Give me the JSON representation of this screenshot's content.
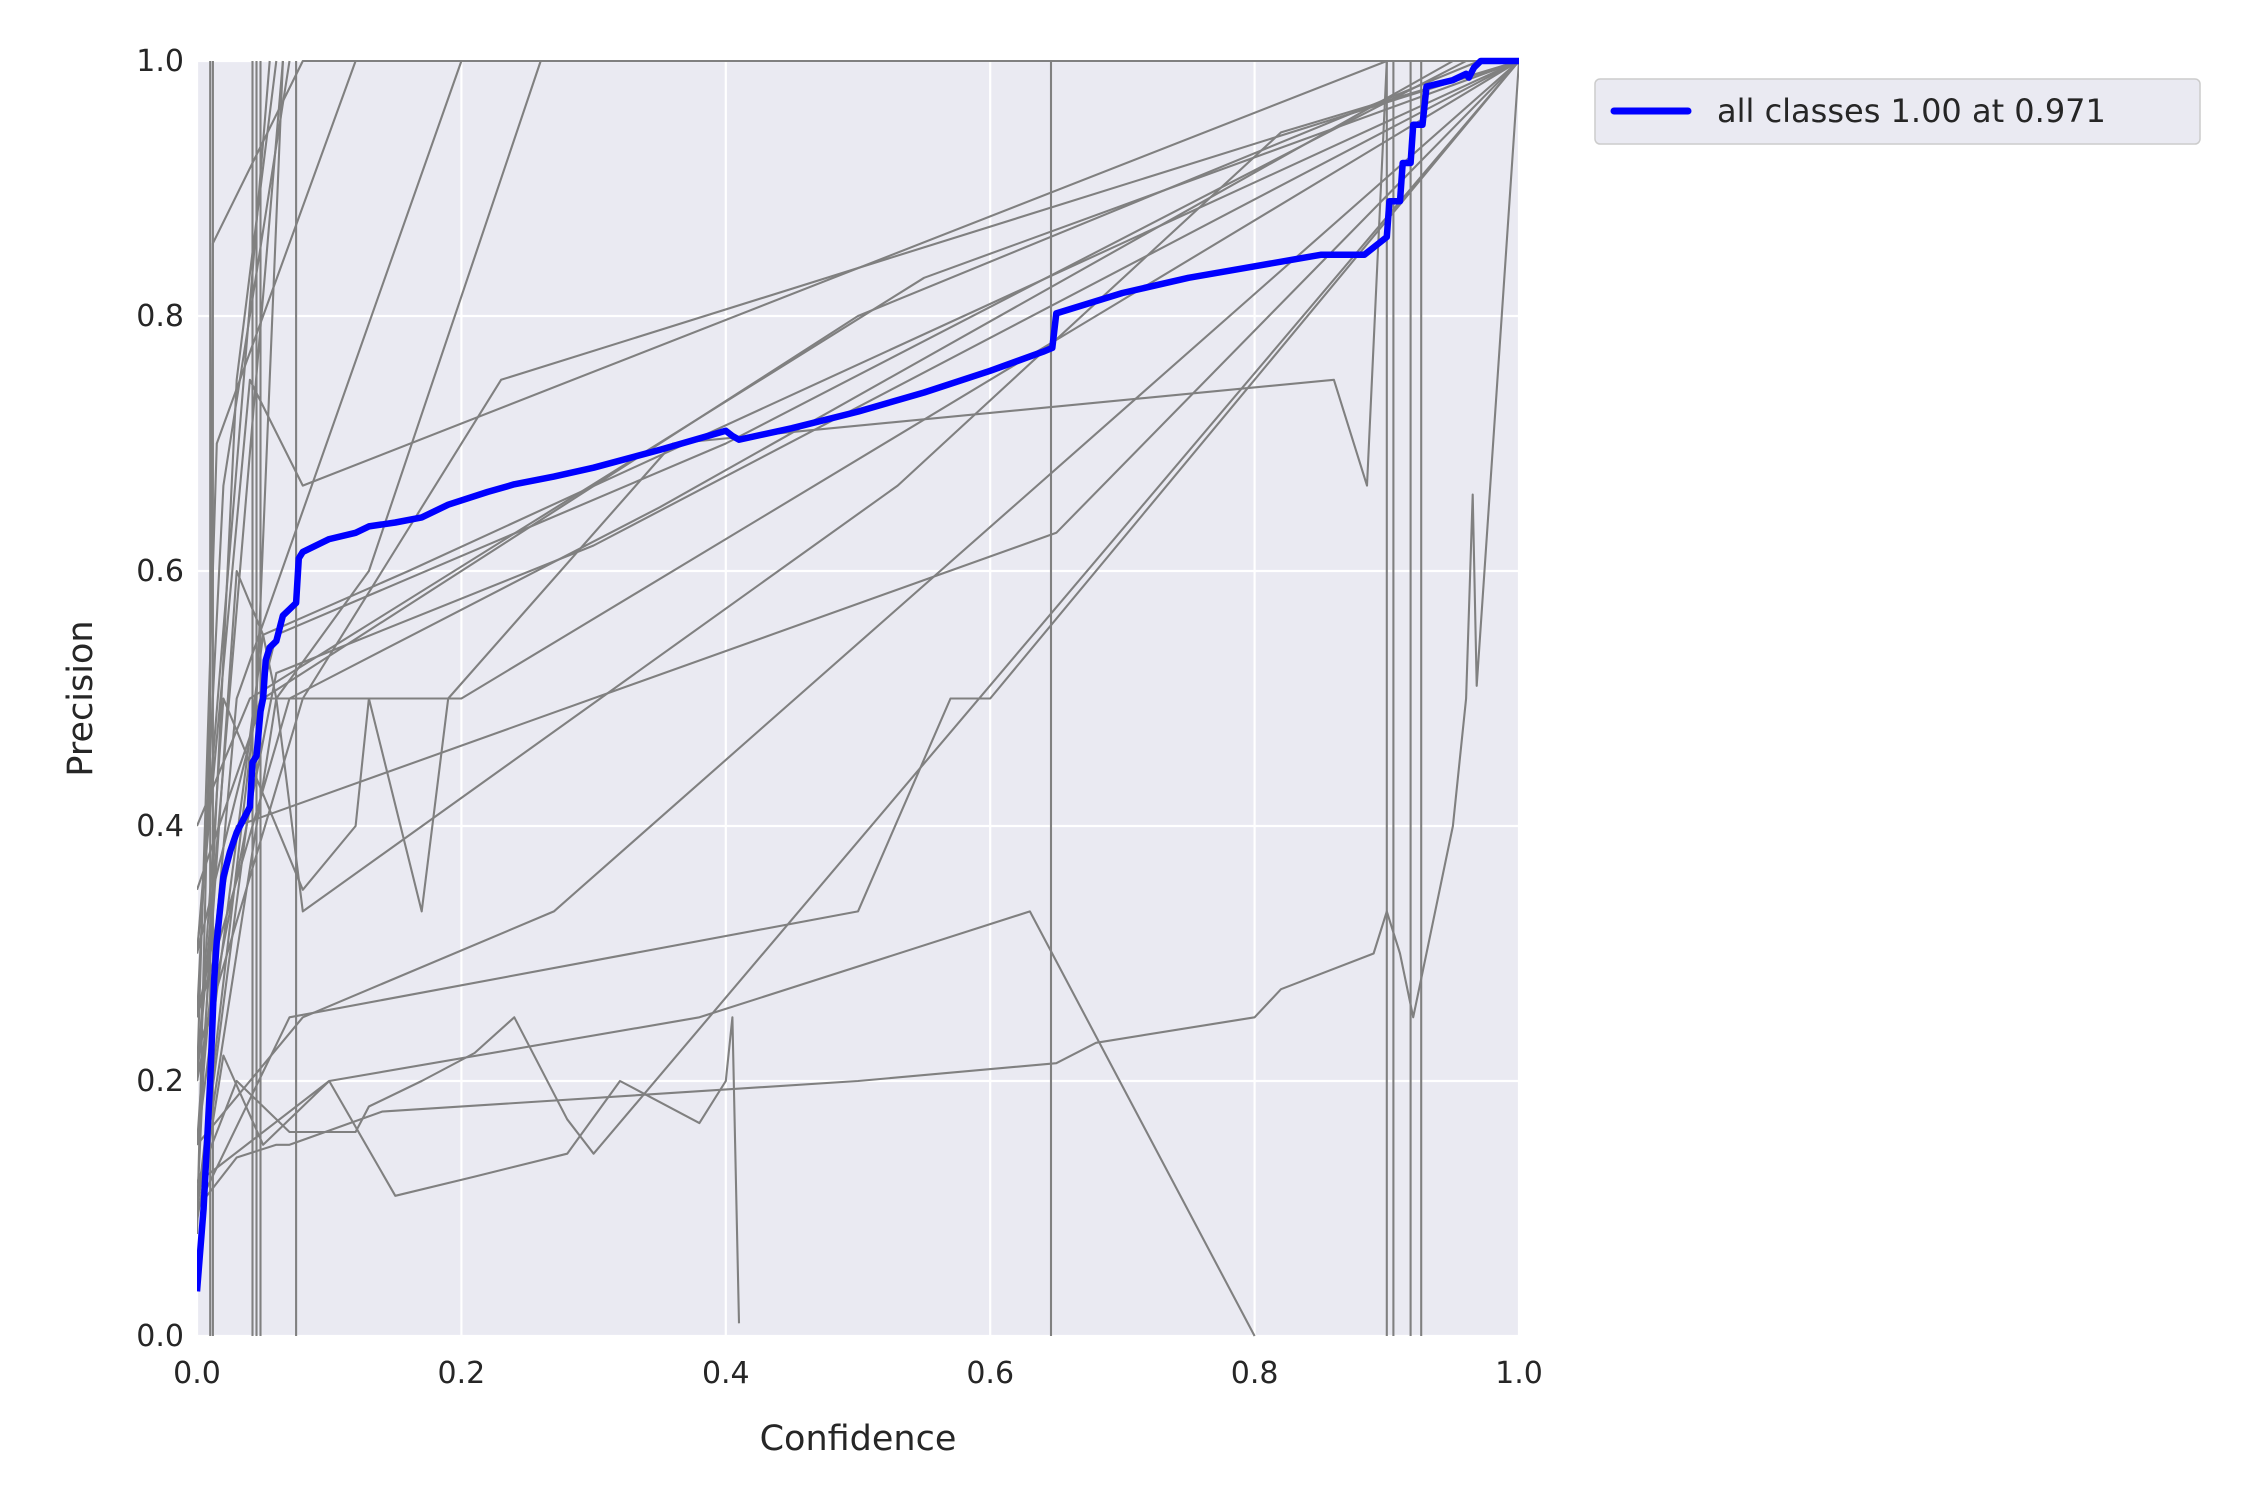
{
  "chart_data": {
    "type": "line",
    "title": "",
    "xlabel": "Confidence",
    "ylabel": "Precision",
    "xlim": [
      0,
      1
    ],
    "ylim": [
      0,
      1
    ],
    "x_ticks": [
      "0.0",
      "0.2",
      "0.4",
      "0.6",
      "0.8",
      "1.0"
    ],
    "y_ticks": [
      "0.0",
      "0.2",
      "0.4",
      "0.6",
      "0.8",
      "1.0"
    ],
    "grid": true,
    "legend_position": "outside-top-right",
    "colors": {
      "plot_bg": "#eaeaf2",
      "grid": "#ffffff",
      "class_lines": "#808080",
      "highlight": "#0000ff"
    },
    "series": [
      {
        "name": "all classes 1.00 at 0.971",
        "color": "#0000ff",
        "highlight": true,
        "x": [
          0.0,
          0.005,
          0.01,
          0.013,
          0.015,
          0.02,
          0.025,
          0.03,
          0.035,
          0.04,
          0.042,
          0.045,
          0.048,
          0.05,
          0.052,
          0.055,
          0.06,
          0.065,
          0.07,
          0.075,
          0.077,
          0.08,
          0.1,
          0.12,
          0.13,
          0.15,
          0.17,
          0.19,
          0.22,
          0.24,
          0.27,
          0.3,
          0.35,
          0.4,
          0.405,
          0.41,
          0.45,
          0.5,
          0.55,
          0.6,
          0.64,
          0.647,
          0.65,
          0.7,
          0.75,
          0.8,
          0.85,
          0.883,
          0.9,
          0.902,
          0.91,
          0.912,
          0.918,
          0.92,
          0.927,
          0.93,
          0.95,
          0.96,
          0.962,
          0.966,
          0.971,
          1.0
        ],
        "y": [
          0.035,
          0.1,
          0.2,
          0.28,
          0.31,
          0.36,
          0.38,
          0.395,
          0.405,
          0.415,
          0.45,
          0.455,
          0.49,
          0.5,
          0.53,
          0.54,
          0.545,
          0.565,
          0.57,
          0.575,
          0.61,
          0.615,
          0.625,
          0.63,
          0.635,
          0.638,
          0.642,
          0.652,
          0.662,
          0.668,
          0.674,
          0.681,
          0.695,
          0.71,
          0.706,
          0.703,
          0.712,
          0.725,
          0.74,
          0.757,
          0.772,
          0.775,
          0.802,
          0.818,
          0.83,
          0.839,
          0.848,
          0.848,
          0.862,
          0.89,
          0.89,
          0.92,
          0.92,
          0.95,
          0.95,
          0.98,
          0.985,
          0.99,
          0.987,
          0.995,
          1.0,
          1.0
        ]
      },
      {
        "x": [
          0.0,
          0.01,
          0.012,
          0.08,
          1.0
        ],
        "y": [
          0.08,
          0.5,
          0.857,
          1.0,
          1.0
        ]
      },
      {
        "x": [
          0.0,
          0.03,
          0.07,
          0.12,
          0.13,
          0.17,
          0.21,
          0.24,
          0.28,
          0.3,
          1.0
        ],
        "y": [
          0.12,
          0.2,
          0.16,
          0.16,
          0.18,
          0.2,
          0.222,
          0.25,
          0.17,
          0.143,
          1.0
        ]
      },
      {
        "x": [
          0.0,
          0.02,
          0.05,
          0.1,
          0.15,
          0.21,
          0.28,
          0.32,
          0.38,
          0.4,
          0.405,
          0.41
        ],
        "y": [
          0.09,
          0.22,
          0.15,
          0.2,
          0.11,
          0.125,
          0.143,
          0.2,
          0.167,
          0.2,
          0.25,
          0.01
        ]
      },
      {
        "x": [
          0.0,
          0.03,
          0.06,
          0.07,
          0.14,
          0.5,
          0.65,
          0.68,
          0.8,
          0.82,
          0.89,
          0.9,
          0.91,
          0.92,
          0.95,
          0.96,
          0.965,
          0.968,
          1.0
        ],
        "y": [
          0.1,
          0.14,
          0.15,
          0.15,
          0.176,
          0.2,
          0.214,
          0.23,
          0.25,
          0.272,
          0.3,
          0.333,
          0.3,
          0.25,
          0.4,
          0.5,
          0.66,
          0.51,
          1.0
        ]
      },
      {
        "x": [
          0.0,
          0.08,
          0.27,
          1.0
        ],
        "y": [
          0.15,
          0.25,
          0.333,
          1.0
        ]
      },
      {
        "x": [
          0.0,
          0.07,
          0.5,
          0.57,
          0.6,
          1.0
        ],
        "y": [
          0.1,
          0.25,
          0.333,
          0.5,
          0.5,
          1.0
        ]
      },
      {
        "x": [
          0.0,
          0.1,
          0.38,
          0.63,
          0.8
        ],
        "y": [
          0.12,
          0.2,
          0.25,
          0.333,
          0.0
        ]
      },
      {
        "x": [
          0.0,
          0.02,
          0.08,
          0.12,
          0.13,
          0.17,
          0.19,
          0.36,
          0.86,
          0.885,
          0.9,
          1.0
        ],
        "y": [
          0.2,
          0.5,
          0.35,
          0.4,
          0.5,
          0.333,
          0.5,
          0.7,
          0.75,
          0.667,
          1.0,
          1.0
        ]
      },
      {
        "x": [
          0.0,
          0.03,
          0.05,
          0.06,
          0.08,
          0.53,
          0.82,
          1.0
        ],
        "y": [
          0.15,
          0.6,
          0.55,
          0.5,
          0.333,
          0.667,
          0.944,
          1.0
        ]
      },
      {
        "x": [
          0.0,
          0.08,
          0.23,
          1.0
        ],
        "y": [
          0.22,
          0.5,
          0.75,
          1.0
        ]
      },
      {
        "x": [
          0.0,
          0.04,
          0.08,
          0.9
        ],
        "y": [
          0.3,
          0.75,
          0.667,
          1.0
        ]
      },
      {
        "x": [
          0.0,
          0.05,
          0.2,
          1.0
        ],
        "y": [
          0.1,
          0.5,
          0.5,
          1.0
        ]
      },
      {
        "x": [
          0.0,
          0.05,
          0.16,
          1.0
        ],
        "y": [
          0.15,
          0.55,
          0.6,
          1.0
        ]
      },
      {
        "x": [
          0.0,
          0.06,
          0.3,
          1.0
        ],
        "y": [
          0.2,
          0.52,
          0.62,
          1.0
        ]
      },
      {
        "x": [
          0.0,
          0.07,
          0.35,
          0.95
        ],
        "y": [
          0.25,
          0.5,
          0.65,
          1.0
        ]
      },
      {
        "x": [
          0.0,
          0.06,
          0.4,
          0.96
        ],
        "y": [
          0.3,
          0.55,
          0.7,
          1.0
        ]
      },
      {
        "x": [
          0.0,
          0.05,
          0.5,
          0.97
        ],
        "y": [
          0.35,
          0.5,
          0.8,
          1.0
        ]
      },
      {
        "x": [
          0.0,
          0.04,
          0.55,
          1.0
        ],
        "y": [
          0.4,
          0.5,
          0.83,
          1.0
        ]
      },
      {
        "x": [
          0.0,
          0.03,
          0.65,
          1.0
        ],
        "y": [
          0.25,
          0.4,
          0.63,
          1.0
        ]
      },
      {
        "x": [
          0.0,
          0.06,
          0.13,
          0.26
        ],
        "y": [
          0.1,
          0.5,
          0.6,
          1.0
        ]
      },
      {
        "x": [
          0.0,
          0.03,
          0.2
        ],
        "y": [
          0.15,
          0.5,
          1.0
        ]
      },
      {
        "x": [
          0.0,
          0.015,
          0.05,
          0.12
        ],
        "y": [
          0.2,
          0.7,
          0.8,
          1.0
        ]
      },
      {
        "x": [
          0.0,
          0.02,
          0.07
        ],
        "y": [
          0.25,
          0.667,
          1.0
        ]
      },
      {
        "x": [
          0.0,
          0.03,
          0.06
        ],
        "y": [
          0.1,
          0.75,
          1.0
        ]
      },
      {
        "x": [
          0.0,
          0.065
        ],
        "y": [
          0.2,
          1.0
        ]
      },
      {
        "x": [
          0.0,
          0.055
        ],
        "y": [
          0.3,
          1.0
        ]
      },
      {
        "x": [
          0.0,
          0.045,
          0.065
        ],
        "y": [
          0.1,
          0.5,
          1.0
        ]
      },
      {
        "x": [
          0.01,
          0.01
        ],
        "y": [
          0.0,
          1.0
        ]
      },
      {
        "x": [
          0.012,
          0.012
        ],
        "y": [
          0.0,
          1.0
        ]
      },
      {
        "x": [
          0.042,
          0.042
        ],
        "y": [
          0.0,
          1.0
        ]
      },
      {
        "x": [
          0.045,
          0.045
        ],
        "y": [
          0.0,
          1.0
        ]
      },
      {
        "x": [
          0.048,
          0.048
        ],
        "y": [
          0.0,
          1.0
        ]
      },
      {
        "x": [
          0.075,
          0.075
        ],
        "y": [
          0.0,
          1.0
        ]
      },
      {
        "x": [
          0.646,
          0.646
        ],
        "y": [
          0.0,
          1.0
        ]
      },
      {
        "x": [
          0.9,
          0.9
        ],
        "y": [
          0.0,
          1.0
        ]
      },
      {
        "x": [
          0.905,
          0.905
        ],
        "y": [
          0.0,
          1.0
        ]
      },
      {
        "x": [
          0.918,
          0.918
        ],
        "y": [
          0.0,
          1.0
        ]
      },
      {
        "x": [
          0.926,
          0.926
        ],
        "y": [
          0.0,
          1.0
        ]
      }
    ]
  }
}
